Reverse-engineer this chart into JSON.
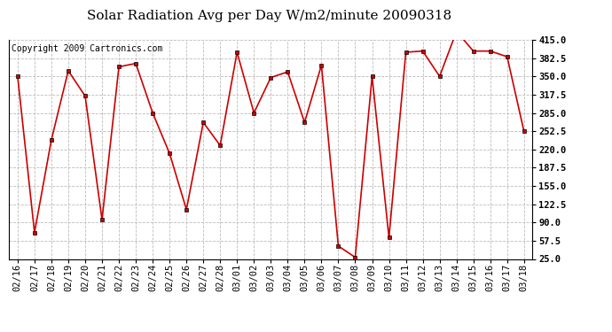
{
  "title": "Solar Radiation Avg per Day W/m2/minute 20090318",
  "copyright": "Copyright 2009 Cartronics.com",
  "labels": [
    "02/16",
    "02/17",
    "02/18",
    "02/19",
    "02/20",
    "02/21",
    "02/22",
    "02/23",
    "02/24",
    "02/25",
    "02/26",
    "02/27",
    "02/28",
    "03/01",
    "03/02",
    "03/03",
    "03/04",
    "03/05",
    "03/06",
    "03/07",
    "03/08",
    "03/09",
    "03/10",
    "03/11",
    "03/12",
    "03/13",
    "03/14",
    "03/15",
    "03/16",
    "03/17",
    "03/18"
  ],
  "values": [
    350,
    72,
    237,
    360,
    315,
    95,
    367,
    373,
    285,
    213,
    113,
    268,
    227,
    393,
    285,
    348,
    358,
    268,
    370,
    48,
    28,
    350,
    63,
    393,
    395,
    350,
    430,
    395,
    395,
    385,
    252
  ],
  "line_color": "#cc0000",
  "marker_color": "#cc0000",
  "bg_color": "#ffffff",
  "plot_bg_color": "#ffffff",
  "grid_color": "#bbbbbb",
  "title_fontsize": 11,
  "copyright_fontsize": 7,
  "tick_fontsize": 7.5,
  "ylim_min": 25.0,
  "ylim_max": 415.0,
  "yticks": [
    25.0,
    57.5,
    90.0,
    122.5,
    155.0,
    187.5,
    220.0,
    252.5,
    285.0,
    317.5,
    350.0,
    382.5,
    415.0
  ]
}
